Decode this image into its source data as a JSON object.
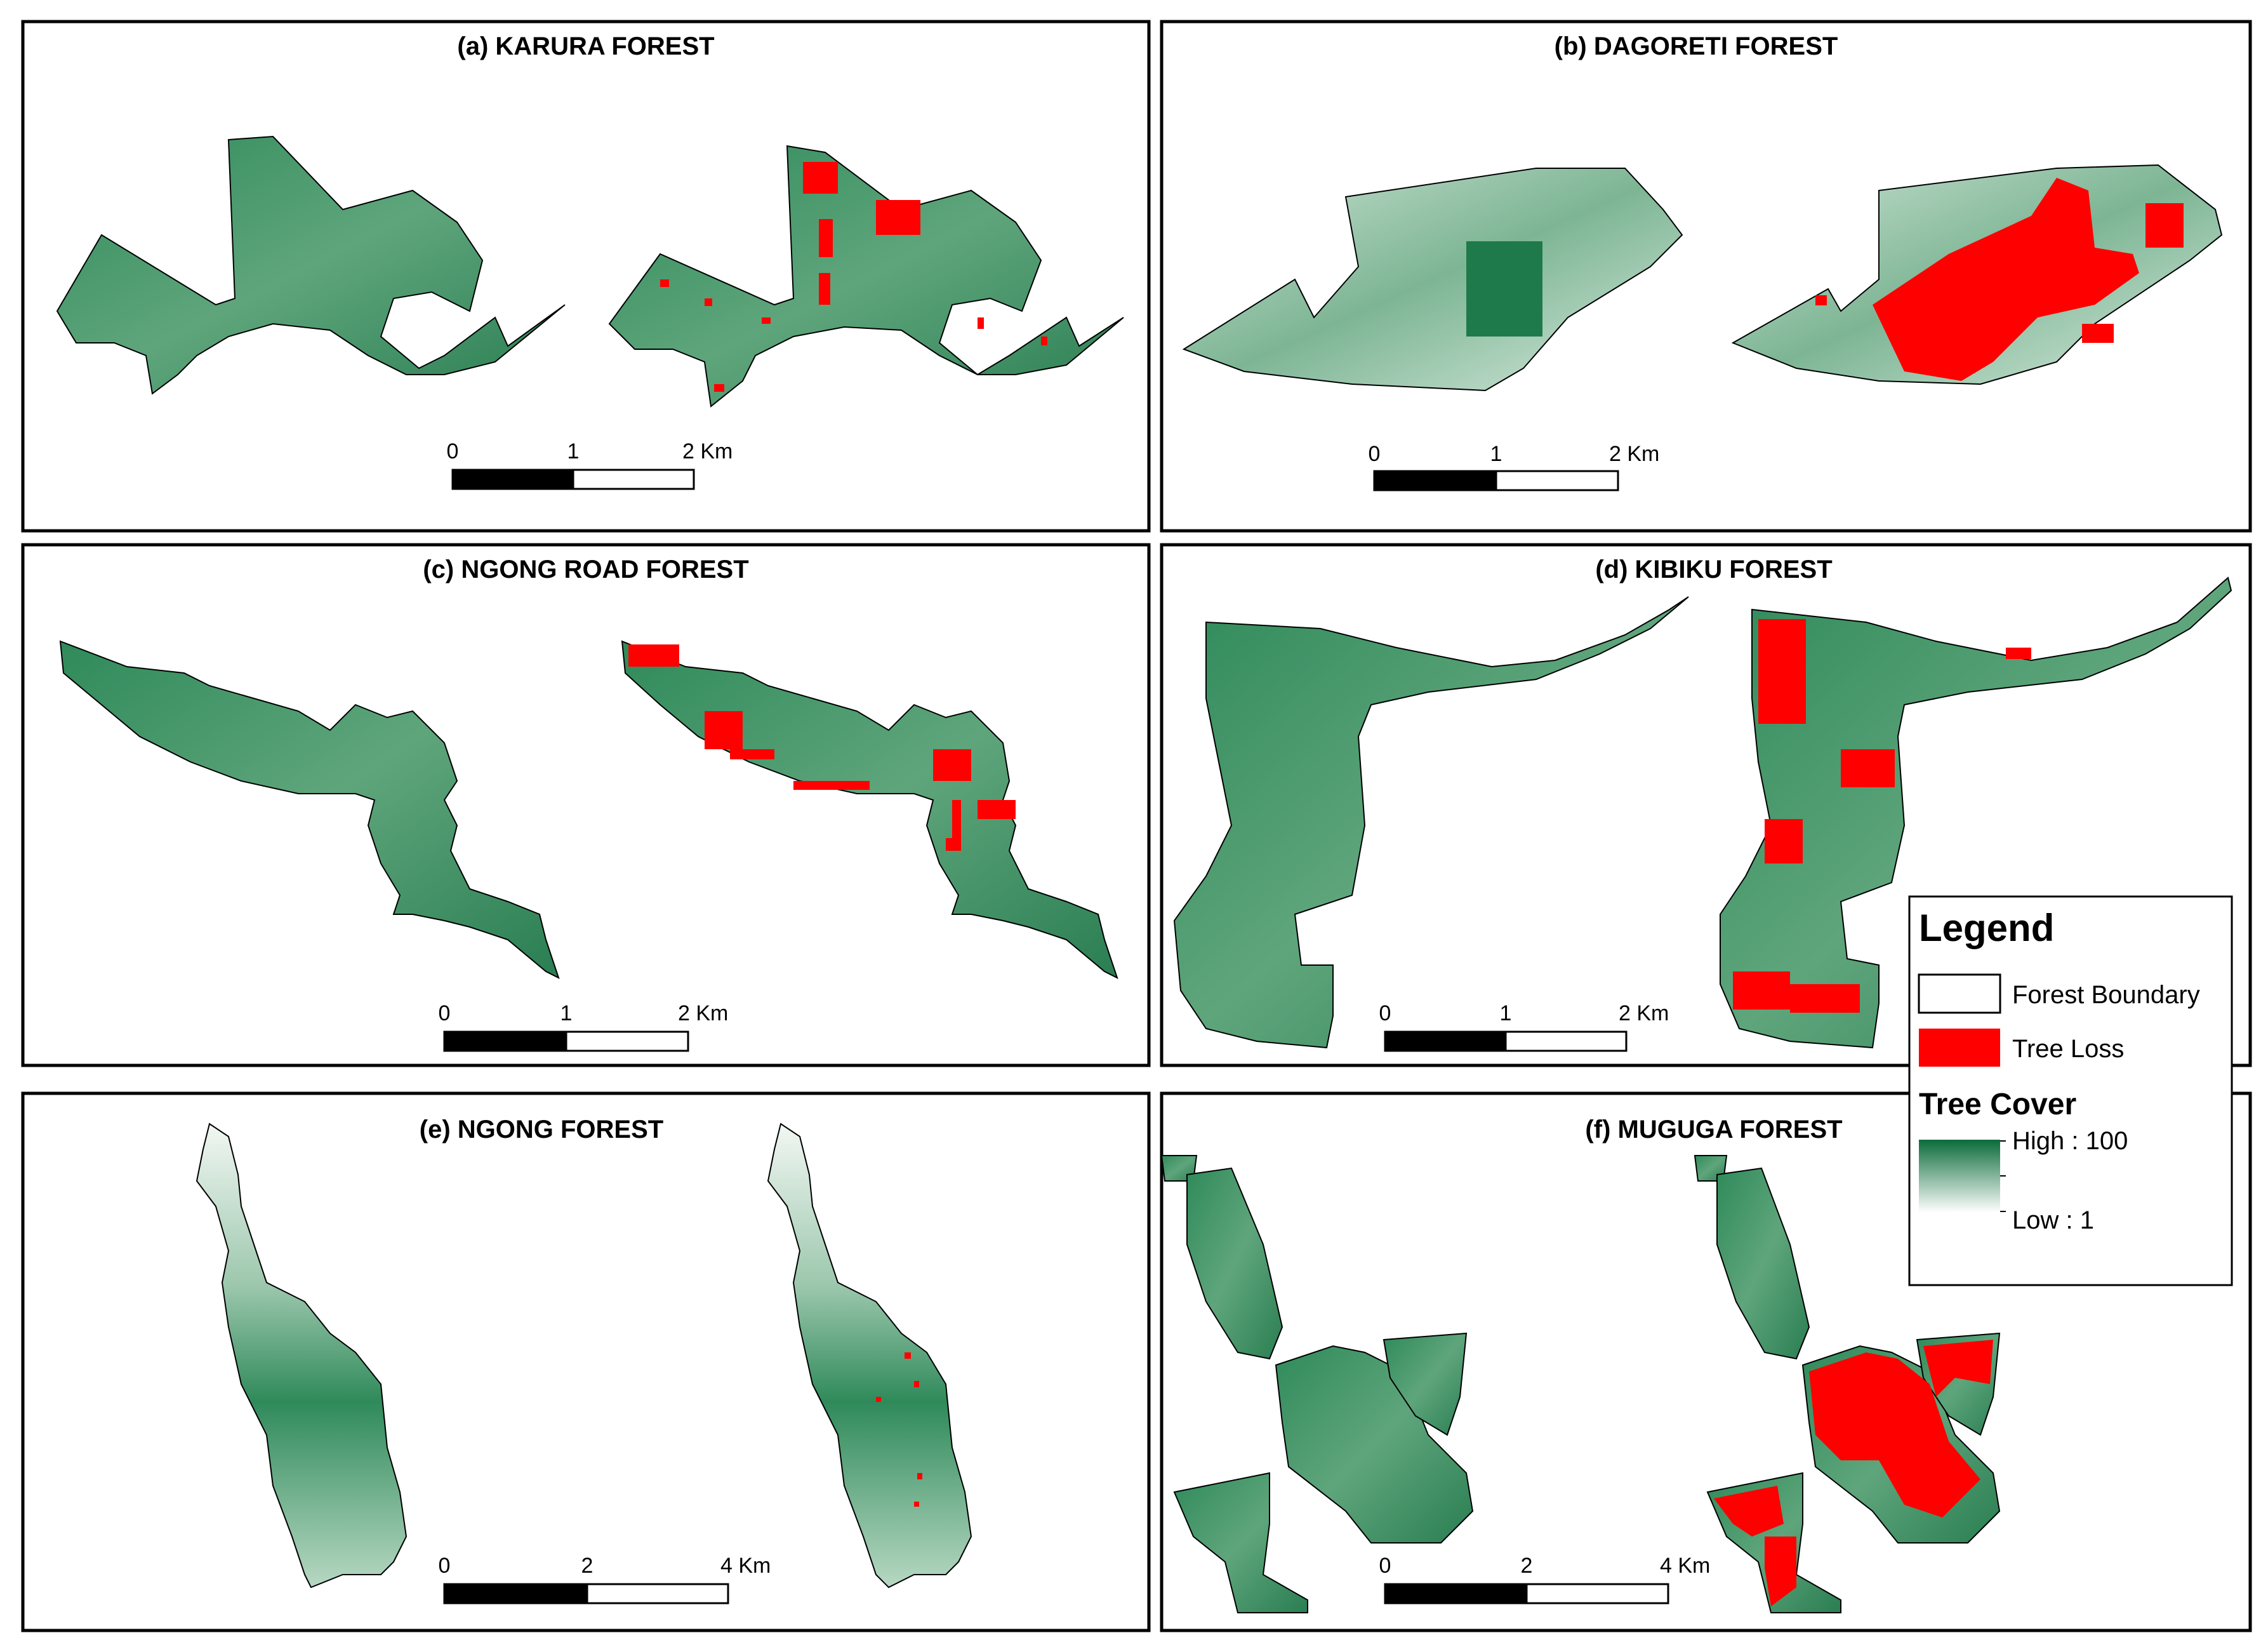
{
  "panels": [
    {
      "id": "a",
      "title": "(a) KARURA FOREST",
      "scale": {
        "ticks": [
          "0",
          "1",
          "2 Km"
        ]
      }
    },
    {
      "id": "b",
      "title": "(b) DAGORETI FOREST",
      "scale": {
        "ticks": [
          "0",
          "1",
          "2 Km"
        ]
      }
    },
    {
      "id": "c",
      "title": "(c) NGONG ROAD FOREST",
      "scale": {
        "ticks": [
          "0",
          "1",
          "2 Km"
        ]
      }
    },
    {
      "id": "d",
      "title": "(d) KIBIKU FOREST",
      "scale": {
        "ticks": [
          "0",
          "1",
          "2 Km"
        ]
      }
    },
    {
      "id": "e",
      "title": "(e) NGONG FOREST",
      "scale": {
        "ticks": [
          "0",
          "2",
          "4 Km"
        ]
      }
    },
    {
      "id": "f",
      "title": "(f) MUGUGA FOREST",
      "scale": {
        "ticks": [
          "0",
          "2",
          "4 Km"
        ]
      }
    }
  ],
  "legend": {
    "title": "Legend",
    "items": [
      {
        "label": "Forest Boundary",
        "color": "#ffffff"
      },
      {
        "label": "Tree Loss",
        "color": "#ff0000"
      }
    ],
    "tree_cover": {
      "title": "Tree Cover",
      "high": "High : 100",
      "low": "Low : 1",
      "high_color": "#0b6b3a",
      "low_color": "#ffffff"
    }
  },
  "colors": {
    "forest_dark": "#1e7a4a",
    "forest_mid": "#4f9a6e",
    "forest_light": "#cfe5d6",
    "loss": "#ff0000",
    "frame": "#000000"
  }
}
